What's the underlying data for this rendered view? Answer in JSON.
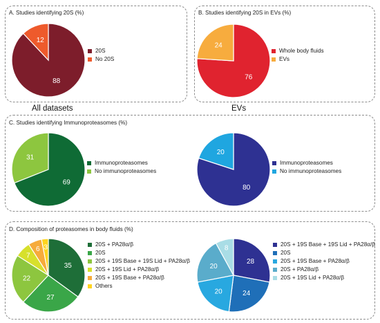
{
  "column_titles": {
    "left": "All datasets",
    "right": "EVs"
  },
  "panels": {
    "A": {
      "title": "A. Studies identifying 20S (%)"
    },
    "B": {
      "title": "B. Studies identifying 20S in EVs (%)"
    },
    "C": {
      "title": "C. Studies identifying Immunoproteasomes (%)"
    },
    "D": {
      "title": "D. Composition of proteasomes in body fluids (%)"
    }
  },
  "chart_data": [
    {
      "id": "pieA",
      "type": "pie",
      "title": "A. Studies identifying 20S (%)",
      "categories": [
        "20S",
        "No 20S"
      ],
      "values": [
        88,
        12
      ],
      "colors": [
        "#7d1d2b",
        "#ee5a2c"
      ]
    },
    {
      "id": "pieB",
      "type": "pie",
      "title": "B. Studies identifying 20S in EVs (%)",
      "categories": [
        "Whole body fluids",
        "EVs"
      ],
      "values": [
        76,
        24
      ],
      "colors": [
        "#e0232f",
        "#f7ac3e"
      ]
    },
    {
      "id": "pieC1",
      "type": "pie",
      "title": "C. Studies identifying Immunoproteasomes (%)",
      "categories": [
        "Immunoproteasomes",
        "No immunoproteasomes"
      ],
      "values": [
        69,
        31
      ],
      "colors": [
        "#0f6b35",
        "#8dc63f"
      ]
    },
    {
      "id": "pieC2",
      "type": "pie",
      "title": "C. Studies identifying Immunoproteasomes (%)",
      "categories": [
        "Immunoproteasomes",
        "No immunoproteasomes"
      ],
      "values": [
        80,
        20
      ],
      "colors": [
        "#2e3192",
        "#1fa6e0"
      ]
    },
    {
      "id": "pieD1",
      "type": "pie",
      "title": "D. Composition of proteasomes in body fluids (%)",
      "categories": [
        "20S + PA28α/β",
        "20S",
        "20S + 19S Base + 19S Lid + PA28α/β",
        "20S + 19S Lid + PA28α/β",
        "20S + 19S Base + PA28α/β",
        "Others"
      ],
      "values": [
        35,
        27,
        22,
        7,
        6,
        3
      ],
      "colors": [
        "#1e6e38",
        "#3aa648",
        "#8dc63f",
        "#d7e02c",
        "#f6ab3b",
        "#ffd41f"
      ]
    },
    {
      "id": "pieD2",
      "type": "pie",
      "title": "D. Composition of proteasomes in body fluids (%)",
      "categories": [
        "20S + 19S Base + 19S Lid + PA28α/β",
        "20S",
        "20S + 19S Base + PA28α/β",
        "20S + PA28α/β",
        "20S + 19S Lid + PA28α/β"
      ],
      "values": [
        28,
        24,
        20,
        20,
        8
      ],
      "colors": [
        "#2e3192",
        "#1f6fb8",
        "#28a8e0",
        "#5aaccb",
        "#a9dde6"
      ]
    }
  ]
}
